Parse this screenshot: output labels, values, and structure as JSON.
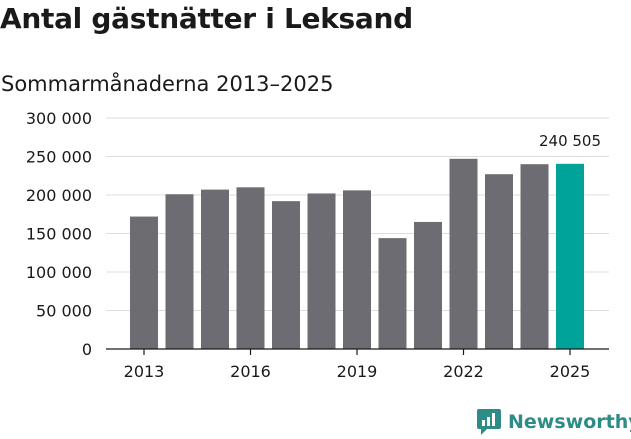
{
  "header": {
    "title": "Antal gästnätter i Leksand",
    "subtitle": "Sommarmånaderna 2013–2025"
  },
  "brand": {
    "name": "Newsworthy",
    "icon": "newsworthy-logo-icon",
    "color": "#2d8c86"
  },
  "chart_data": {
    "type": "bar",
    "title": "Antal gästnätter i Leksand",
    "subtitle": "Sommarmånaderna 2013–2025",
    "xlabel": "",
    "ylabel": "",
    "ylim": [
      0,
      300000
    ],
    "grid": true,
    "categories": [
      "2013",
      "2014",
      "2015",
      "2016",
      "2017",
      "2018",
      "2019",
      "2020",
      "2021",
      "2022",
      "2023",
      "2024",
      "2025"
    ],
    "x_tick_labels": [
      "2013",
      "2016",
      "2019",
      "2022",
      "2025"
    ],
    "y_tick_values": [
      0,
      50000,
      100000,
      150000,
      200000,
      250000,
      300000
    ],
    "y_tick_labels": [
      "0",
      "50 000",
      "100 000",
      "150 000",
      "200 000",
      "250 000",
      "300 000"
    ],
    "values": [
      172000,
      201000,
      207000,
      210000,
      192000,
      202000,
      206000,
      144000,
      165000,
      247000,
      227000,
      240000,
      240505
    ],
    "highlight_index": 12,
    "highlight_label": "240 505",
    "colors": {
      "bar": "#6d6c72",
      "highlight": "#00a398",
      "grid": "#dcdcdc",
      "axis": "#1a1a1a"
    }
  }
}
